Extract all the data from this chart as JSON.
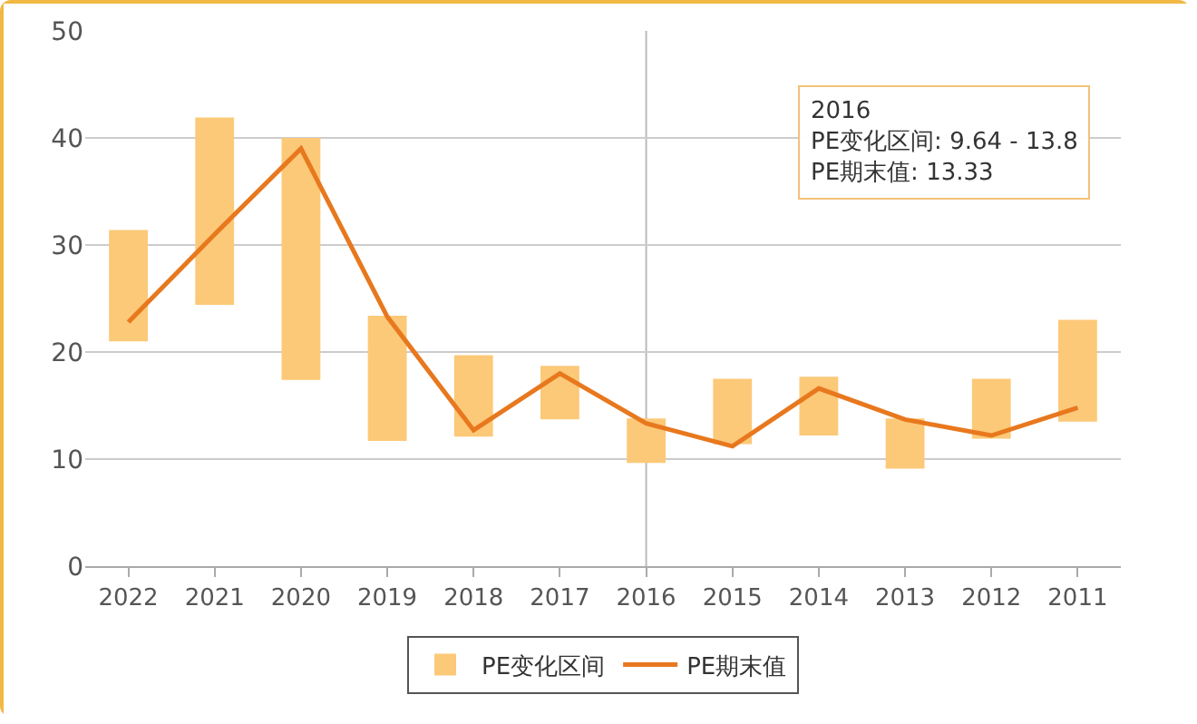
{
  "chart_data": {
    "type": "bar",
    "categories": [
      "2022",
      "2021",
      "2020",
      "2019",
      "2018",
      "2017",
      "2016",
      "2015",
      "2014",
      "2013",
      "2012",
      "2011"
    ],
    "series": [
      {
        "name": "PE变化区间",
        "color": "#fcc978",
        "base": [
          21.0,
          24.4,
          17.4,
          11.7,
          12.1,
          13.7,
          9.64,
          11.4,
          12.2,
          9.1,
          11.9,
          13.5
        ],
        "values": [
          10.4,
          17.5,
          22.6,
          11.7,
          7.6,
          5.0,
          4.16,
          6.1,
          5.5,
          4.7,
          5.6,
          9.5
        ]
      },
      {
        "type": "line",
        "name": "PE期末值",
        "color": "#e8781e",
        "values": [
          22.8,
          31.0,
          39.0,
          23.3,
          12.7,
          18.0,
          13.33,
          11.2,
          16.6,
          13.7,
          12.2,
          14.8
        ]
      }
    ],
    "ylim": [
      0,
      50
    ],
    "yticks": [
      0,
      10,
      20,
      30,
      40,
      50
    ],
    "grid": "y",
    "legend": "bottom",
    "marker": "none",
    "line_style": "solid",
    "ref_lines": [
      {
        "axis": "x",
        "value": "2016",
        "color": "#bbbbbb"
      }
    ],
    "annotations": [
      "2016",
      "PE变化区间: 9.64 - 13.8",
      "PE期末值: 13.33"
    ]
  }
}
